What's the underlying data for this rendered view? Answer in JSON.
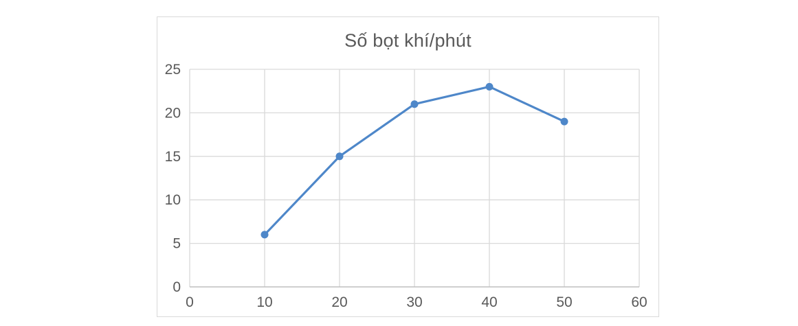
{
  "chart_data": {
    "type": "line",
    "title": "Số bọt khí/phút",
    "x": [
      10,
      20,
      30,
      40,
      50
    ],
    "y": [
      6,
      15,
      21,
      23,
      19
    ],
    "xlabel": "",
    "ylabel": "",
    "xlim": [
      0,
      60
    ],
    "ylim": [
      0,
      25
    ],
    "x_ticks": [
      0,
      10,
      20,
      30,
      40,
      50,
      60
    ],
    "y_ticks": [
      0,
      5,
      10,
      15,
      20,
      25
    ],
    "grid": true,
    "legend": false,
    "marker": "circle",
    "colors": {
      "series": "#4E87C9",
      "gridline": "#d9d9d9",
      "axis_line": "#bfbfbf",
      "tick_label": "#595959",
      "title": "#595959",
      "frame_border": "#d9d9d9",
      "background": "#ffffff"
    }
  }
}
